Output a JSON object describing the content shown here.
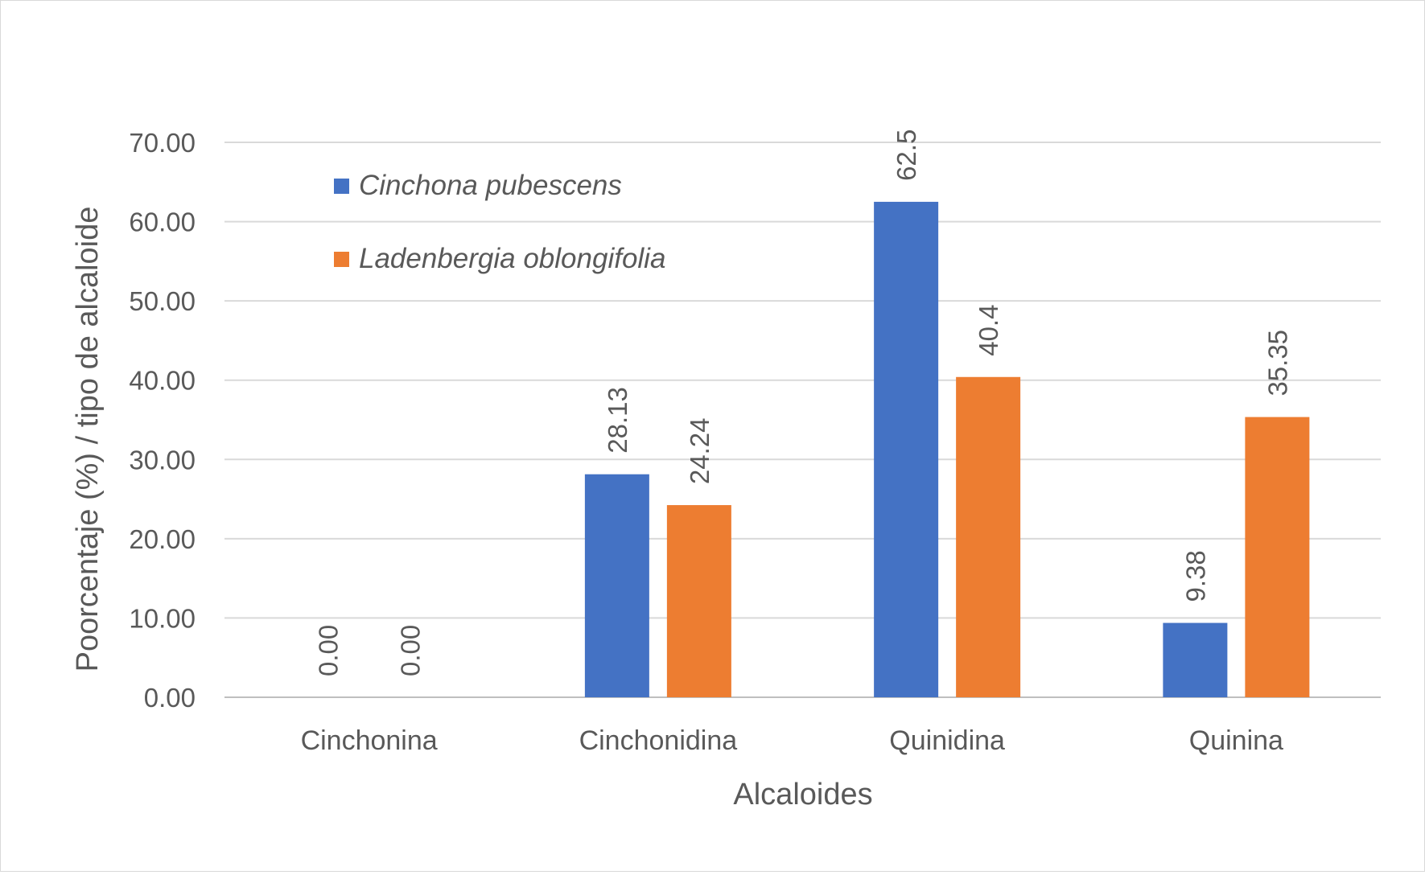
{
  "chart_data": {
    "type": "bar",
    "categories": [
      "Cinchonina",
      "Cinchonidina",
      "Quinidina",
      "Quinina"
    ],
    "series": [
      {
        "name": "Cinchona pubescens",
        "color": "#4472c4",
        "values": [
          0.0,
          28.13,
          62.5,
          9.38
        ],
        "labels": [
          "0.00",
          "28.13",
          "62.5",
          "9.38"
        ]
      },
      {
        "name": "Ladenbergia oblongifolia",
        "color": "#ed7d31",
        "values": [
          0.0,
          24.24,
          40.4,
          35.35
        ],
        "labels": [
          "0.00",
          "24.24",
          "40.4",
          "35.35"
        ]
      }
    ],
    "xlabel": "Alcaloides",
    "ylabel": "Poorcentaje (%) / tipo de alcaloide",
    "ylim": [
      0,
      70
    ],
    "yticks": [
      "0.00",
      "10.00",
      "20.00",
      "30.00",
      "40.00",
      "50.00",
      "60.00",
      "70.00"
    ],
    "grid": true,
    "legend_position": "top-left"
  }
}
